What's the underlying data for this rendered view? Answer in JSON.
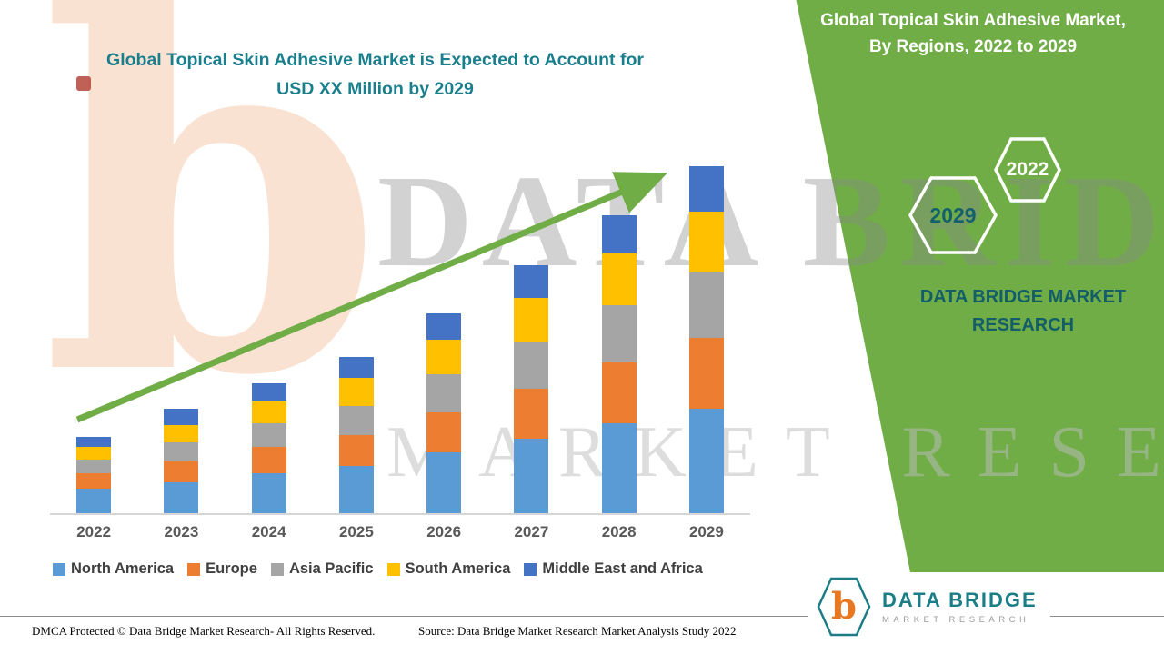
{
  "title": {
    "line1": "Global Topical Skin Adhesive Market is Expected to Account for",
    "line2": "USD XX Million by 2029"
  },
  "banner": {
    "line1": "Global Topical Skin Adhesive Market,",
    "line2": "By Regions, 2022 to 2029",
    "hex_back_year": "2029",
    "hex_front_year": "2022",
    "brand_line1": "DATA BRIDGE MARKET",
    "brand_line2": "RESEARCH"
  },
  "watermark": {
    "letter": "b",
    "main": "DATA BRIDGE",
    "sub": "MARKET RESEARCH"
  },
  "footer": {
    "dmca": "DMCA Protected © Data Bridge Market Research- All Rights Reserved.",
    "source": "Source: Data Bridge Market Research Market Analysis Study 2022"
  },
  "logo": {
    "letter": "b",
    "line1": "DATA BRIDGE",
    "line2": "MARKET RESEARCH"
  },
  "chart_data": {
    "type": "bar",
    "stacked": true,
    "title": "Global Topical Skin Adhesive Market is Expected to Account for USD XX Million by 2029",
    "value_unit": "USD Million (labeled XX; values estimated from bar heights, relative index)",
    "categories": [
      "2022",
      "2023",
      "2024",
      "2025",
      "2026",
      "2027",
      "2028",
      "2029"
    ],
    "series": [
      {
        "name": "North America",
        "color": "#5B9BD5",
        "values": [
          7,
          9,
          11.5,
          13.5,
          17.5,
          21.5,
          26,
          30
        ]
      },
      {
        "name": "Europe",
        "color": "#ED7D31",
        "values": [
          4.5,
          6,
          7.5,
          9,
          11.5,
          14.5,
          17.5,
          20.5
        ]
      },
      {
        "name": "Asia Pacific",
        "color": "#A5A5A5",
        "values": [
          4,
          5.5,
          7,
          8.5,
          11,
          13.5,
          16.5,
          19
        ]
      },
      {
        "name": "South America",
        "color": "#FFC000",
        "values": [
          3.5,
          5,
          6.5,
          8,
          10,
          12.5,
          15,
          17.5
        ]
      },
      {
        "name": "Middle East and Africa",
        "color": "#4472C4",
        "values": [
          3,
          4.5,
          5,
          6,
          7.5,
          9.5,
          11,
          13
        ]
      }
    ],
    "totals": [
      22,
      30,
      37.5,
      45,
      57.5,
      71.5,
      86,
      100
    ],
    "ylim": [
      0,
      100
    ],
    "y_axis_visible": false,
    "grid": false,
    "legend_position": "bottom",
    "trend_arrow": true,
    "trend_arrow_color": "#70AD47"
  }
}
